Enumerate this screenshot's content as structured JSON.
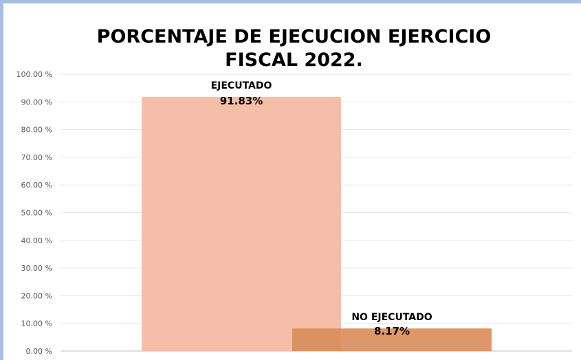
{
  "chart_data": {
    "type": "bar",
    "title": "PORCENTAJE DE EJECUCION EJERCICIO FISCAL 2022.",
    "title_lines": [
      "PORCENTAJE DE EJECUCION EJERCICIO",
      "FISCAL 2022."
    ],
    "categories": [
      "EJECUTADO",
      "NO EJECUTADO"
    ],
    "values": [
      91.83,
      8.17
    ],
    "data_labels": [
      "91.83%",
      "8.17%"
    ],
    "ylim": [
      0,
      100
    ],
    "yticks": [
      0,
      10,
      20,
      30,
      40,
      50,
      60,
      70,
      80,
      90,
      100
    ],
    "ytick_labels": [
      "0.00 %",
      "10.00 %",
      "20.00 %",
      "30.00 %",
      "40.00 %",
      "50.00 %",
      "60.00 %",
      "70.00 %",
      "80.00 %",
      "90.00 %",
      "100.00 %"
    ],
    "xlabel": "",
    "ylabel": "",
    "grid": true,
    "legend": "none",
    "colors": [
      "#f4b9a2",
      "#d98c58"
    ]
  }
}
